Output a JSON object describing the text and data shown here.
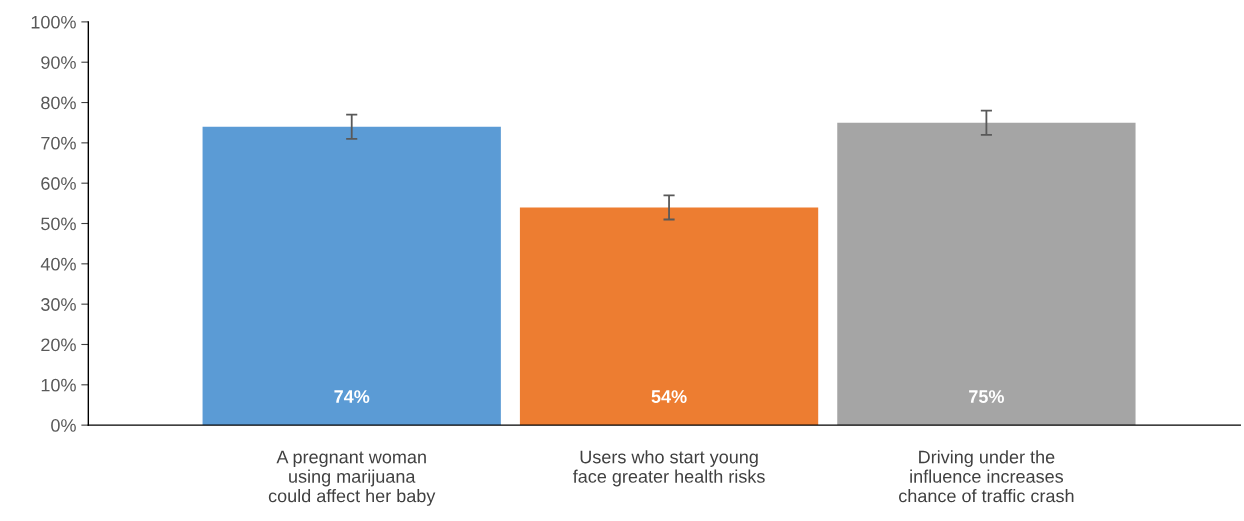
{
  "chart_data": {
    "type": "bar",
    "categories": [
      "A pregnant woman\nusing marijuana\ncould affect her baby",
      "Users who start young\nface greater health risks",
      "Driving under the\ninfluence increases\nchance of traffic crash"
    ],
    "values": [
      74,
      54,
      75
    ],
    "colors": [
      "#5b9bd5",
      "#ed7d31",
      "#a5a5a5"
    ],
    "errors": [
      3,
      3,
      3
    ],
    "value_labels": [
      "74%",
      "54%",
      "75%"
    ],
    "ylim": [
      0,
      100
    ],
    "yticks": [
      {
        "value": 0,
        "label": "0%"
      },
      {
        "value": 10,
        "label": "10%"
      },
      {
        "value": 20,
        "label": "20%"
      },
      {
        "value": 30,
        "label": "30%"
      },
      {
        "value": 40,
        "label": "40%"
      },
      {
        "value": 50,
        "label": "50%"
      },
      {
        "value": 60,
        "label": "60%"
      },
      {
        "value": 70,
        "label": "70%"
      },
      {
        "value": 80,
        "label": "80%"
      },
      {
        "value": 90,
        "label": "90%"
      },
      {
        "value": 100,
        "label": "100%"
      }
    ],
    "grid": false,
    "legend": false
  }
}
